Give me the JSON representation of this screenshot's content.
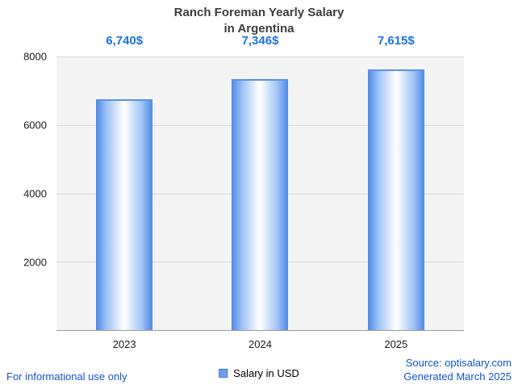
{
  "title": {
    "line1": "Ranch Foreman Yearly Salary",
    "line2": "in Argentina"
  },
  "chart_data": {
    "type": "bar",
    "title": "Ranch Foreman Yearly Salary in Argentina",
    "categories": [
      "2023",
      "2024",
      "2025"
    ],
    "values": [
      6740,
      7346,
      7615
    ],
    "value_labels": [
      "6,740$",
      "7,346$",
      "7,615$"
    ],
    "series_name": "Salary in USD",
    "xlabel": "",
    "ylabel": "",
    "ylim": [
      0,
      8000
    ],
    "yticks": [
      2000,
      4000,
      6000,
      8000
    ],
    "ytick_labels_top_to_bottom": [
      "8000",
      "6000",
      "4000",
      "2000"
    ],
    "grid": true,
    "legend_position": "bottom",
    "bar_color_edge": "#4c89e8",
    "bar_color_center": "#ffffff",
    "value_label_color": "#1a73e8",
    "plot_background": "#f4f4f4"
  },
  "footer": {
    "disclaimer": "For informational use only",
    "legend_label": "Salary in USD",
    "source_line1": "Source: optisalary.com",
    "source_line2": "Generated March 2025"
  }
}
